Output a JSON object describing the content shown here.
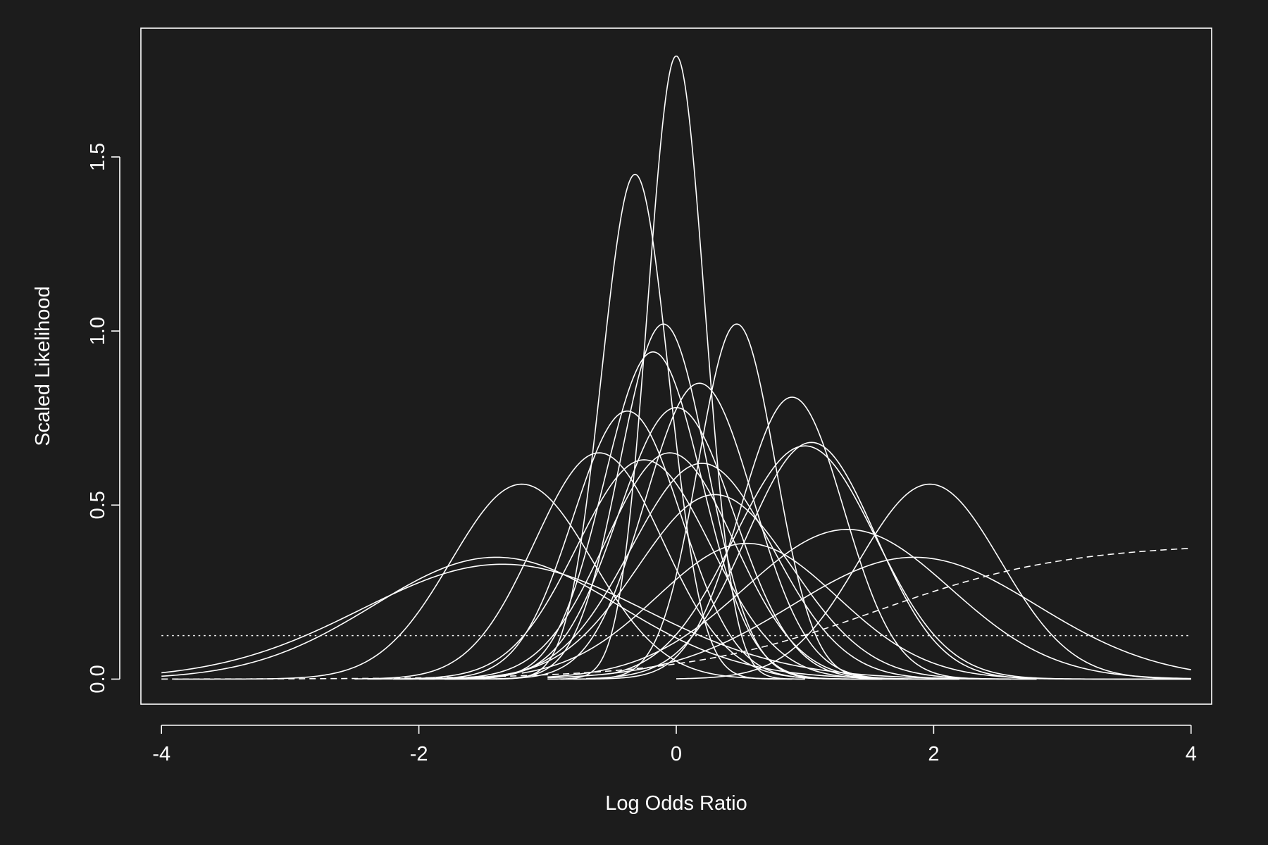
{
  "chart_data": {
    "type": "line",
    "title": "",
    "xlabel": "Log Odds Ratio",
    "ylabel": "Scaled Likelihood",
    "xlim": [
      -4.16,
      4.16
    ],
    "ylim": [
      -0.072,
      1.87
    ],
    "xticks": [
      -4,
      -2,
      0,
      2,
      4
    ],
    "yticks": [
      0.0,
      0.5,
      1.0,
      1.5
    ],
    "xtick_labels": [
      "-4",
      "-2",
      "0",
      "2",
      "4"
    ],
    "ytick_labels": [
      "0.0",
      "0.5",
      "1.0",
      "1.5"
    ],
    "colors": {
      "background": "#1c1c1c",
      "foreground": "#ffffff"
    },
    "grid": false,
    "legend": "none",
    "curves": [
      {
        "kind": "normal",
        "mean": 0.0,
        "peak": 1.79,
        "sd": 0.22,
        "range": [
          -1.0,
          1.0
        ]
      },
      {
        "kind": "normal",
        "mean": -0.32,
        "peak": 1.45,
        "sd": 0.26,
        "range": [
          -1.4,
          0.9
        ]
      },
      {
        "kind": "normal",
        "mean": -0.1,
        "peak": 1.02,
        "sd": 0.34,
        "range": [
          -1.8,
          1.6
        ]
      },
      {
        "kind": "normal",
        "mean": 0.47,
        "peak": 1.02,
        "sd": 0.3,
        "range": [
          -0.9,
          1.8
        ]
      },
      {
        "kind": "normal",
        "mean": -0.18,
        "peak": 0.94,
        "sd": 0.38,
        "range": [
          -2.0,
          1.8
        ]
      },
      {
        "kind": "normal",
        "mean": 0.18,
        "peak": 0.85,
        "sd": 0.42,
        "range": [
          -1.5,
          2.0
        ]
      },
      {
        "kind": "normal",
        "mean": 0.9,
        "peak": 0.81,
        "sd": 0.4,
        "range": [
          -0.8,
          2.8
        ]
      },
      {
        "kind": "normal",
        "mean": 0.0,
        "peak": 0.78,
        "sd": 0.45,
        "range": [
          -1.8,
          2.2
        ]
      },
      {
        "kind": "normal",
        "mean": -0.38,
        "peak": 0.77,
        "sd": 0.42,
        "range": [
          -2.2,
          1.6
        ]
      },
      {
        "kind": "normal",
        "mean": 1.05,
        "peak": 0.68,
        "sd": 0.5,
        "range": [
          -0.7,
          4.0
        ]
      },
      {
        "kind": "normal",
        "mean": 1.0,
        "peak": 0.67,
        "sd": 0.55,
        "range": [
          -0.5,
          4.0
        ]
      },
      {
        "kind": "normal",
        "mean": -0.6,
        "peak": 0.65,
        "sd": 0.5,
        "range": [
          -2.5,
          1.4
        ]
      },
      {
        "kind": "normal",
        "mean": -0.05,
        "peak": 0.65,
        "sd": 0.5,
        "range": [
          -2.2,
          2.2
        ]
      },
      {
        "kind": "normal",
        "mean": -0.25,
        "peak": 0.63,
        "sd": 0.52,
        "range": [
          -2.4,
          2.0
        ]
      },
      {
        "kind": "normal",
        "mean": 0.2,
        "peak": 0.62,
        "sd": 0.55,
        "range": [
          -1.8,
          2.6
        ]
      },
      {
        "kind": "normal",
        "mean": 1.97,
        "peak": 0.56,
        "sd": 0.55,
        "range": [
          0.0,
          4.0
        ]
      },
      {
        "kind": "normal",
        "mean": -1.2,
        "peak": 0.56,
        "sd": 0.55,
        "range": [
          -3.9,
          1.0
        ]
      },
      {
        "kind": "normal",
        "mean": 0.3,
        "peak": 0.53,
        "sd": 0.6,
        "range": [
          -1.6,
          2.8
        ]
      },
      {
        "kind": "normal",
        "mean": 1.33,
        "peak": 0.43,
        "sd": 0.8,
        "range": [
          -1.0,
          4.0
        ]
      },
      {
        "kind": "normal",
        "mean": 0.55,
        "peak": 0.39,
        "sd": 0.7,
        "range": [
          -1.2,
          3.2
        ]
      },
      {
        "kind": "normal",
        "mean": -1.4,
        "peak": 0.35,
        "sd": 0.95,
        "range": [
          -4.0,
          1.6
        ]
      },
      {
        "kind": "normal",
        "mean": 1.85,
        "peak": 0.35,
        "sd": 0.95,
        "range": [
          -1.0,
          4.0
        ]
      },
      {
        "kind": "normal",
        "mean": -1.35,
        "peak": 0.33,
        "sd": 1.1,
        "range": [
          -4.0,
          2.2
        ]
      }
    ],
    "reference_lines": [
      {
        "kind": "constant",
        "style": "dotted",
        "y": 0.125,
        "range": [
          -4,
          4
        ]
      },
      {
        "kind": "logistic",
        "style": "dashed",
        "top": 0.39,
        "mid": 1.55,
        "scale": 0.75,
        "range": [
          -4,
          4
        ]
      }
    ]
  }
}
